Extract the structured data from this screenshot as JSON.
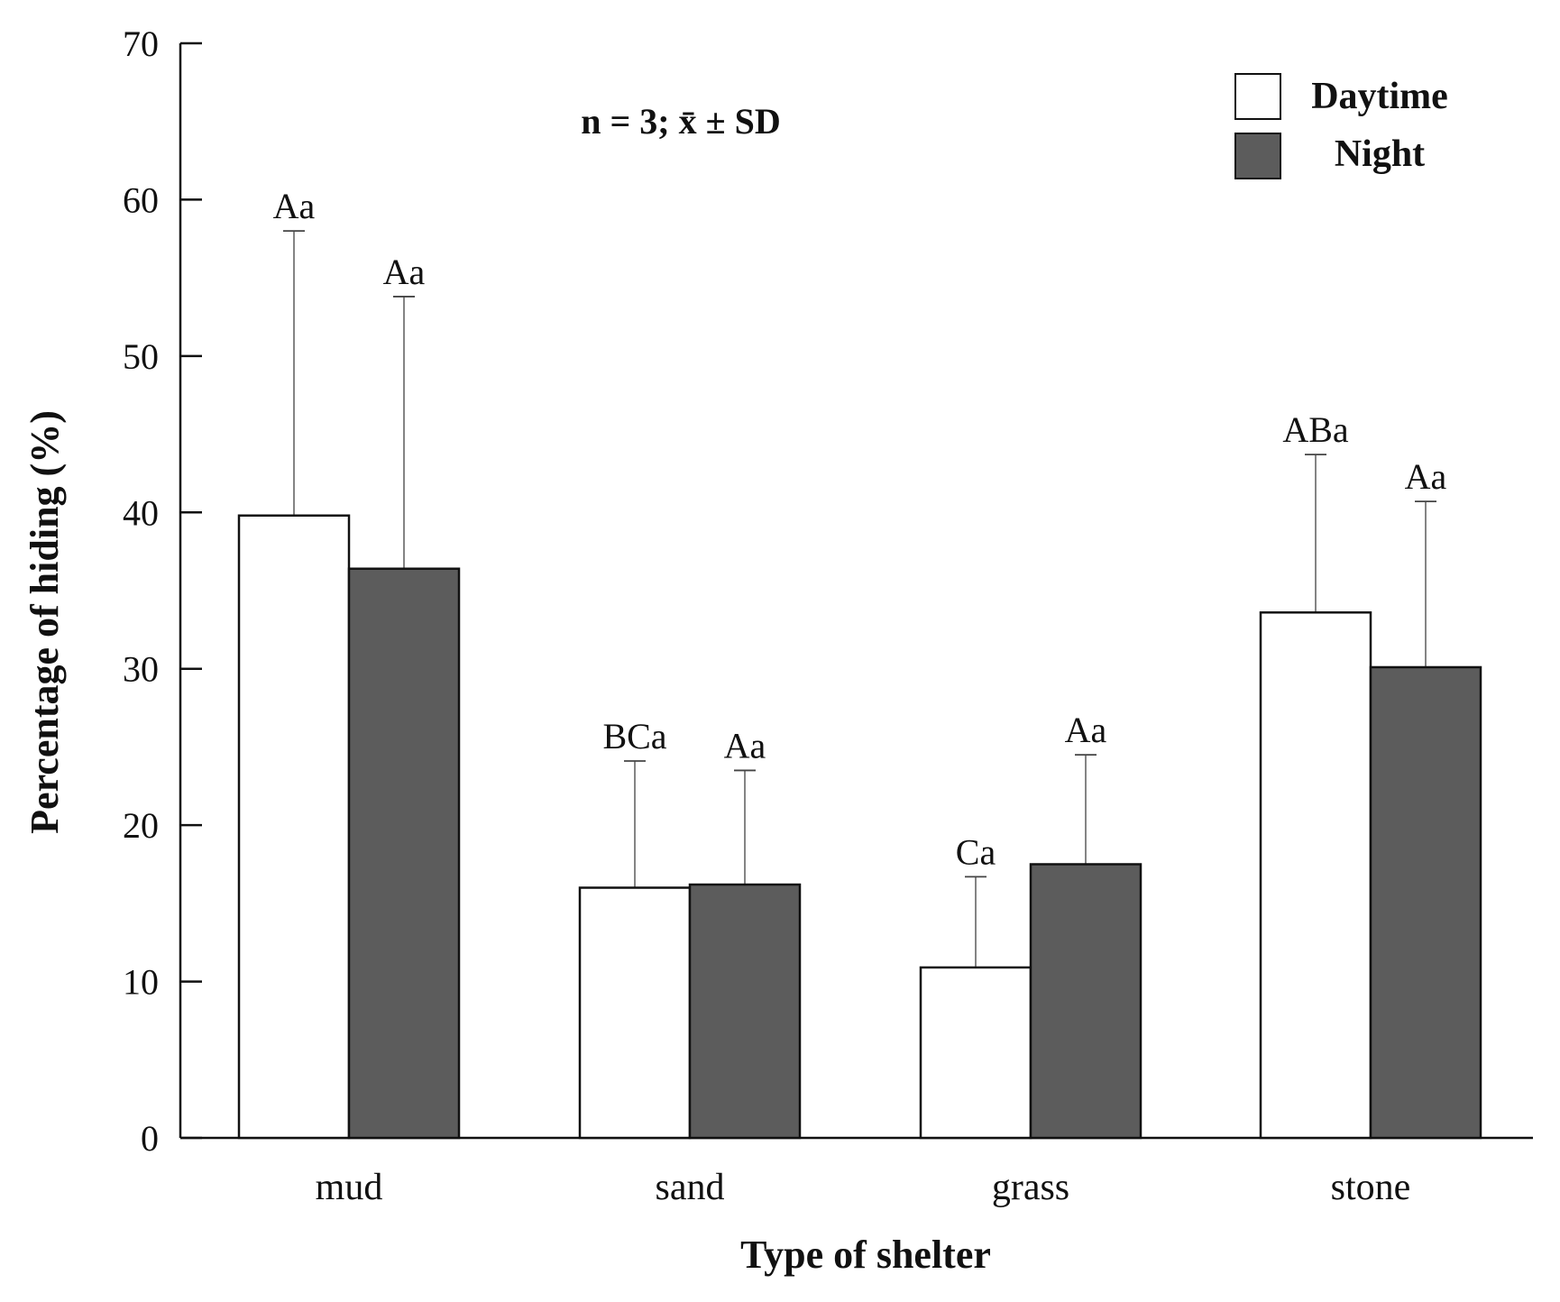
{
  "chart_data": {
    "type": "bar",
    "title": "",
    "xlabel": "Type of shelter",
    "ylabel": "Percentage of hiding (%)",
    "ylim": [
      0,
      70
    ],
    "yticks": [
      0,
      10,
      20,
      30,
      40,
      50,
      60,
      70
    ],
    "categories": [
      "mud",
      "sand",
      "grass",
      "stone"
    ],
    "annotation": "n = 3; x̄ ± SD",
    "legend_position": "top-right",
    "series": [
      {
        "name": "Daytime",
        "color": "#ffffff",
        "values": [
          39.8,
          16.0,
          10.9,
          33.6
        ],
        "errors": [
          18.2,
          8.1,
          5.8,
          10.1
        ],
        "labels": [
          "Aa",
          "BCa",
          "Ca",
          "ABa"
        ]
      },
      {
        "name": "Night",
        "color": "#5c5c5c",
        "values": [
          36.4,
          16.2,
          17.5,
          30.1
        ],
        "errors": [
          17.4,
          7.3,
          7.0,
          10.6
        ],
        "labels": [
          "Aa",
          "Aa",
          "Aa",
          "Aa"
        ]
      }
    ]
  }
}
